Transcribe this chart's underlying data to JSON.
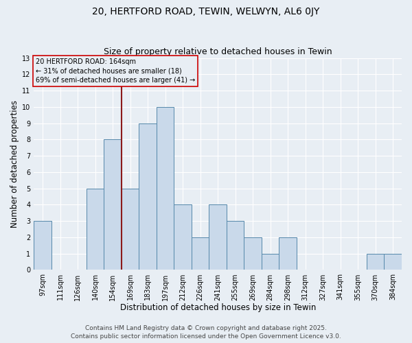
{
  "title_line1": "20, HERTFORD ROAD, TEWIN, WELWYN, AL6 0JY",
  "title_line2": "Size of property relative to detached houses in Tewin",
  "xlabel": "Distribution of detached houses by size in Tewin",
  "ylabel": "Number of detached properties",
  "bin_labels": [
    "97sqm",
    "111sqm",
    "126sqm",
    "140sqm",
    "154sqm",
    "169sqm",
    "183sqm",
    "197sqm",
    "212sqm",
    "226sqm",
    "241sqm",
    "255sqm",
    "269sqm",
    "284sqm",
    "298sqm",
    "312sqm",
    "327sqm",
    "341sqm",
    "355sqm",
    "370sqm",
    "384sqm"
  ],
  "bar_values": [
    3,
    0,
    0,
    5,
    8,
    5,
    9,
    10,
    4,
    2,
    4,
    3,
    2,
    1,
    2,
    0,
    0,
    0,
    0,
    1,
    1
  ],
  "bar_color": "#c9d9ea",
  "bar_edgecolor": "#5588aa",
  "reference_bin_index": 5,
  "reference_label": "20 HERTFORD ROAD: 164sqm",
  "annotation_line1": "← 31% of detached houses are smaller (18)",
  "annotation_line2": "69% of semi-detached houses are larger (41) →",
  "ref_line_color": "#8b1a1a",
  "annotation_box_edgecolor": "#cc0000",
  "ylim": [
    0,
    13
  ],
  "yticks": [
    0,
    1,
    2,
    3,
    4,
    5,
    6,
    7,
    8,
    9,
    10,
    11,
    12,
    13
  ],
  "footer_line1": "Contains HM Land Registry data © Crown copyright and database right 2025.",
  "footer_line2": "Contains public sector information licensed under the Open Government Licence v3.0.",
  "bg_color": "#e8eef4",
  "grid_color": "#ffffff",
  "title_fontsize": 10,
  "subtitle_fontsize": 9,
  "axis_label_fontsize": 8.5,
  "tick_fontsize": 7,
  "annotation_fontsize": 7,
  "footer_fontsize": 6.5
}
